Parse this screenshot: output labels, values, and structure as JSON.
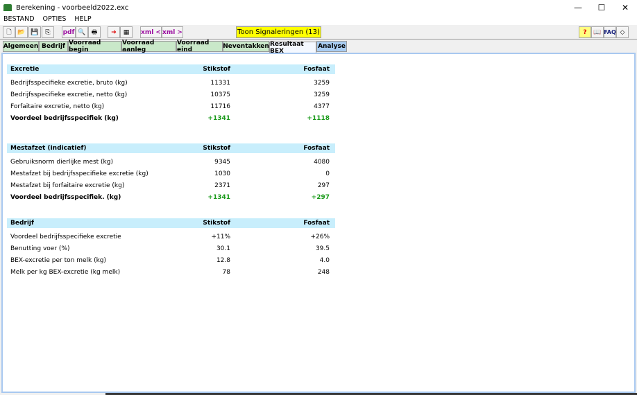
{
  "window": {
    "title": "Berekening - voorbeeld2022.exc",
    "minimize": "—",
    "maximize": "☐",
    "close": "✕"
  },
  "menu": [
    "BESTAND",
    "OPTIES",
    "HELP"
  ],
  "toolbar": {
    "pdf": "pdf",
    "xml_in": "xml <",
    "xml_out": "xml >",
    "signal": "Toon Signaleringen (13)",
    "faq": "FAQ",
    "help": "?"
  },
  "tabs": [
    "Algemeen",
    "Bedrijf",
    "Voorraad begin",
    "Voorraad aanleg",
    "Voorraad eind",
    "Neventakken",
    "Resultaat BEX",
    "Analyse"
  ],
  "active_tab": "Resultaat BEX",
  "colors": {
    "header_bg": "#c8eefc",
    "positive": "#1a9a1a",
    "signal_bg": "#ffff00"
  },
  "sections": [
    {
      "title": "Excretie",
      "col1": "Stikstof",
      "col2": "Fosfaat",
      "rows": [
        {
          "label": "Bedrijfsspecifieke excretie, bruto (kg)",
          "v1": "11331",
          "v2": "3259"
        },
        {
          "label": "Bedrijfsspecifieke excretie, netto (kg)",
          "v1": "10375",
          "v2": "3259"
        },
        {
          "label": "Forfaitaire excretie, netto (kg)",
          "v1": "11716",
          "v2": "4377"
        },
        {
          "label": "Voordeel bedrijfsspecifiek (kg)",
          "v1": "+1341",
          "v2": "+1118",
          "bold": true
        }
      ]
    },
    {
      "title": "Mestafzet (indicatief)",
      "col1": "Stikstof",
      "col2": "Fosfaat",
      "rows": [
        {
          "label": "Gebruiksnorm dierlijke mest (kg)",
          "v1": "9345",
          "v2": "4080"
        },
        {
          "label": "Mestafzet bij bedrijfsspecifieke excretie (kg)",
          "v1": "1030",
          "v2": "0"
        },
        {
          "label": "Mestafzet bij forfaitaire excretie (kg)",
          "v1": "2371",
          "v2": "297"
        },
        {
          "label": "Voordeel bedrijfsspecifiek. (kg)",
          "v1": "+1341",
          "v2": "+297",
          "bold": true
        }
      ]
    },
    {
      "title": "Bedrijf",
      "col1": "Stikstof",
      "col2": "Fosfaat",
      "rows": [
        {
          "label": "Voordeel bedrijfsspecifieke excretie",
          "v1": "+11%",
          "v2": "+26%"
        },
        {
          "label": "Benutting voer (%)",
          "v1": "30.1",
          "v2": "39.5"
        },
        {
          "label": "BEX-excretie per ton melk (kg)",
          "v1": "12.8",
          "v2": "4.0"
        },
        {
          "label": "Melk per kg BEX-excretie (kg melk)",
          "v1": "78",
          "v2": "248"
        }
      ]
    }
  ]
}
